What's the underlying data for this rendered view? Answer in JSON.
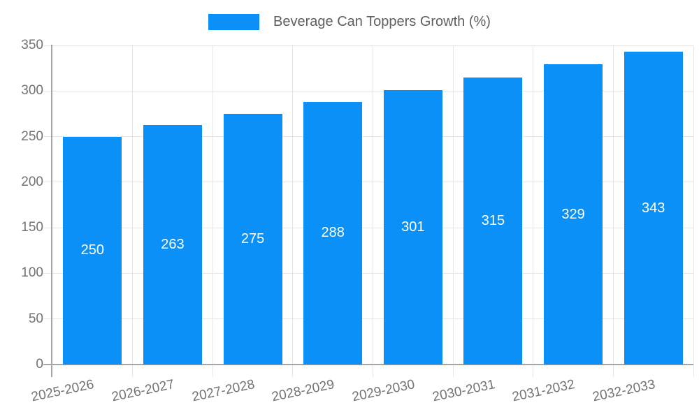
{
  "legend": {
    "label": "Beverage Can Toppers Growth (%)"
  },
  "colors": {
    "bar": "#0a90f6",
    "grid": "#e7e7e7",
    "axis": "#a6a6a6",
    "tick_text": "#737373",
    "legend_text": "#5f5f5f",
    "value_label": "#ffffff"
  },
  "chart_data": {
    "type": "bar",
    "title": "Beverage Can Toppers Growth (%)",
    "series_name": "Beverage Can Toppers Growth (%)",
    "categories": [
      "2025-2026",
      "2026-2027",
      "2027-2028",
      "2028-2029",
      "2029-2030",
      "2030-2031",
      "2031-2032",
      "2032-2033"
    ],
    "values": [
      250,
      263,
      275,
      288,
      301,
      315,
      329,
      343
    ],
    "value_labels": [
      "250",
      "263",
      "275",
      "288",
      "301",
      "315",
      "329",
      "343"
    ],
    "xlabel": "",
    "ylabel": "",
    "ylim": [
      0,
      350
    ],
    "yticks": [
      0,
      50,
      100,
      150,
      200,
      250,
      300,
      350
    ],
    "grid": true,
    "legend_position": "top-center",
    "value_label_position": "center-of-bar",
    "x_tick_label_rotation_deg": -12
  }
}
